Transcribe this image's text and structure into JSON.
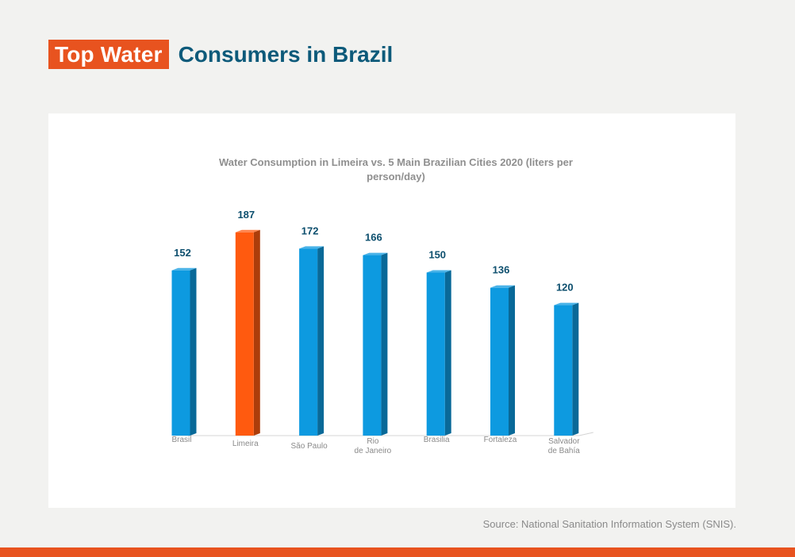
{
  "header": {
    "title_highlight": "Top Water",
    "title_rest": "Consumers in Brazil"
  },
  "footer": {
    "source": "Source: National Sanitation Information System (SNIS)."
  },
  "colors": {
    "accent": "#e8531f",
    "bar_default": "#0d9ae0",
    "bar_highlight": "#ff5a0f",
    "title_blue": "#0d5a7a"
  },
  "chart_data": {
    "type": "bar",
    "title_lines": [
      "Water Consumption in Limeira vs. 5 Main Brazilian Cities 2020 (liters per",
      "person/day)"
    ],
    "categories": [
      [
        "Brasil"
      ],
      [
        "Limeira"
      ],
      [
        "São Paulo"
      ],
      [
        "Rio",
        "de Janeiro"
      ],
      [
        "Brasilia"
      ],
      [
        "Fortaleza"
      ],
      [
        "Salvador",
        "de Bahía"
      ]
    ],
    "values": [
      152,
      187,
      172,
      166,
      150,
      136,
      120
    ],
    "highlight_index": 1,
    "ylim": [
      0,
      200
    ],
    "grid": false,
    "legend": "none"
  }
}
